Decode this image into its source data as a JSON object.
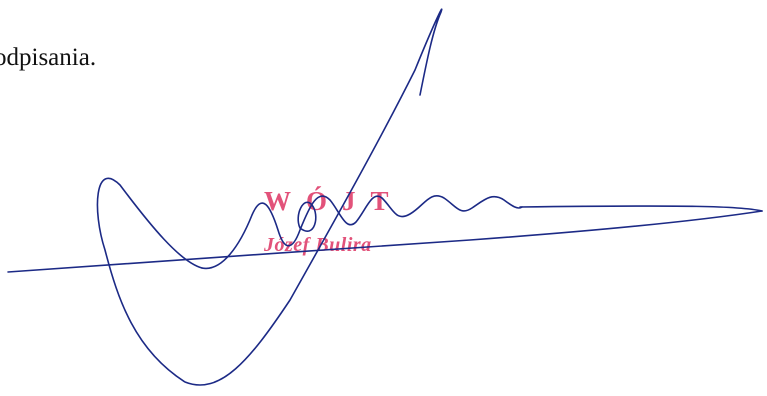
{
  "document": {
    "body_text": "odpisania."
  },
  "stamp": {
    "title": "WÓJT",
    "name": "Józef Bulira"
  },
  "colors": {
    "stamp": "#e2527a",
    "signature_ink": "#1c2a86",
    "text": "#111111"
  }
}
